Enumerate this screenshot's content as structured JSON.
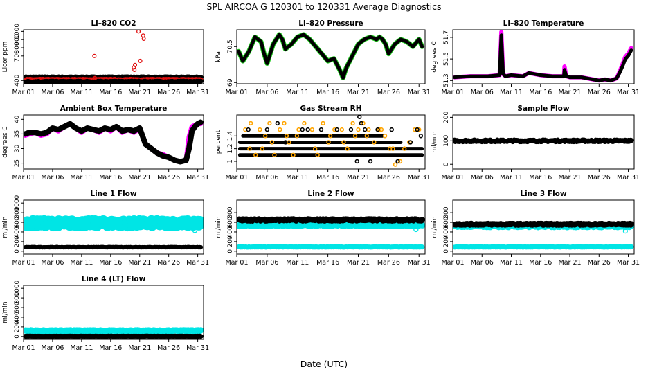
{
  "figure": {
    "title": "SPL   AIRCOA G   120301 to 120331   Average Diagnostics",
    "xlabel": "Date (UTC)"
  },
  "colors": {
    "black": "#000000",
    "red": "#e01010",
    "magenta": "#ff00ff",
    "green": "#22cc22",
    "orange": "#ffa500",
    "cyan": "#00e5e5",
    "blue": "#1f1fcf"
  },
  "x_ticks": [
    "Mar 01",
    "Mar 06",
    "Mar 11",
    "Mar 16",
    "Mar 21",
    "Mar 26",
    "Mar 31"
  ],
  "chart_data": [
    {
      "id": "co2",
      "title": "Li-820 CO2",
      "type": "scatter",
      "ylabel": "Licor ppm",
      "xlim": [
        1,
        32
      ],
      "ylim": [
        360,
        1020
      ],
      "yticks": [
        400,
        700,
        800,
        900,
        1000
      ],
      "series": [
        {
          "name": "co2_black_upper",
          "color": "black",
          "style": "band",
          "base": 440,
          "noise": 5
        },
        {
          "name": "co2_red",
          "color": "red",
          "style": "band",
          "base": 410,
          "noise": 5
        },
        {
          "name": "co2_black_lower",
          "color": "black",
          "style": "band",
          "base": 385,
          "noise": 8
        },
        {
          "name": "co2_spikes",
          "color": "red",
          "style": "points",
          "x": [
            13.2,
            13.3,
            20.0,
            20.1,
            20.2,
            20.8,
            21.1,
            21.6,
            21.7
          ],
          "y": [
            700,
            430,
            560,
            530,
            590,
            1000,
            640,
            950,
            910
          ]
        }
      ]
    },
    {
      "id": "pressure",
      "title": "Li-820 Pressure",
      "type": "line",
      "ylabel": "kPa",
      "xlim": [
        1,
        32
      ],
      "ylim": [
        68.95,
        71.2
      ],
      "yticks": [
        69.0,
        70.5
      ],
      "series": [
        {
          "name": "pressure_green",
          "color": "green",
          "style": "line",
          "width": 7,
          "x": [
            1.3,
            2,
            3,
            4,
            5,
            5.5,
            6,
            6.5,
            7,
            8,
            8.5,
            9,
            10,
            11,
            12,
            13,
            14,
            15,
            16,
            17,
            18,
            18.5,
            19,
            20,
            21,
            22,
            23,
            24,
            24.5,
            25,
            25.5,
            26,
            27,
            28,
            29,
            30,
            31,
            31.5
          ],
          "y": [
            70.3,
            69.9,
            70.3,
            70.9,
            70.7,
            70.2,
            69.8,
            70.2,
            70.6,
            71.0,
            70.8,
            70.4,
            70.6,
            70.9,
            71.0,
            70.8,
            70.5,
            70.2,
            69.9,
            70.0,
            69.5,
            69.2,
            69.6,
            70.1,
            70.6,
            70.8,
            70.9,
            70.8,
            70.9,
            70.8,
            70.6,
            70.2,
            70.6,
            70.8,
            70.7,
            70.5,
            70.8,
            70.5
          ]
        },
        {
          "name": "pressure_black",
          "color": "black",
          "style": "line",
          "width": 5,
          "x": [
            1.3,
            2,
            3,
            4,
            5,
            5.5,
            6,
            6.5,
            7,
            8,
            8.5,
            9,
            10,
            11,
            12,
            13,
            14,
            15,
            16,
            17,
            18,
            18.5,
            19,
            20,
            21,
            22,
            23,
            24,
            24.5,
            25,
            25.5,
            26,
            27,
            28,
            29,
            30,
            31,
            31.5
          ],
          "y": [
            70.3,
            69.9,
            70.3,
            70.9,
            70.7,
            70.2,
            69.8,
            70.2,
            70.6,
            71.0,
            70.8,
            70.4,
            70.6,
            70.9,
            71.0,
            70.8,
            70.5,
            70.2,
            69.9,
            70.0,
            69.5,
            69.2,
            69.6,
            70.1,
            70.6,
            70.8,
            70.9,
            70.8,
            70.9,
            70.8,
            70.6,
            70.2,
            70.6,
            70.8,
            70.7,
            70.5,
            70.8,
            70.5
          ]
        }
      ]
    },
    {
      "id": "temperature",
      "title": "Li-820 Temperature",
      "type": "scatter",
      "ylabel": "degrees C",
      "xlim": [
        1,
        32
      ],
      "ylim": [
        51.27,
        51.77
      ],
      "yticks": [
        51.3,
        51.5,
        51.7
      ],
      "series": [
        {
          "name": "temp_magenta",
          "color": "magenta",
          "style": "line",
          "width": 6,
          "x": [
            1.3,
            4,
            7,
            9,
            9.3,
            9.6,
            10,
            11,
            13,
            14,
            16,
            18,
            20,
            20.1,
            20.4,
            21,
            23,
            24,
            25,
            26,
            27,
            28,
            29,
            29.5,
            30,
            30.5,
            31,
            31.5
          ],
          "y": [
            51.33,
            51.34,
            51.34,
            51.35,
            51.75,
            51.36,
            51.34,
            51.35,
            51.34,
            51.37,
            51.35,
            51.34,
            51.34,
            51.43,
            51.34,
            51.33,
            51.33,
            51.32,
            51.31,
            51.3,
            51.31,
            51.3,
            51.32,
            51.38,
            51.45,
            51.52,
            51.55,
            51.6
          ]
        },
        {
          "name": "temp_black",
          "color": "black",
          "style": "line",
          "width": 5,
          "x": [
            1.3,
            4,
            7,
            9,
            9.3,
            9.6,
            10,
            11,
            13,
            14,
            16,
            18,
            20,
            20.1,
            20.4,
            21,
            23,
            24,
            25,
            26,
            27,
            28,
            29,
            29.5,
            30,
            30.5,
            31,
            31.5
          ],
          "y": [
            51.33,
            51.34,
            51.34,
            51.35,
            51.72,
            51.36,
            51.34,
            51.35,
            51.34,
            51.37,
            51.35,
            51.34,
            51.34,
            51.4,
            51.34,
            51.33,
            51.33,
            51.32,
            51.31,
            51.3,
            51.31,
            51.3,
            51.32,
            51.37,
            51.43,
            51.5,
            51.53,
            51.58
          ]
        }
      ]
    },
    {
      "id": "ambient",
      "title": "Ambient Box Temperature",
      "type": "line",
      "ylabel": "degrees C",
      "xlim": [
        1,
        32
      ],
      "ylim": [
        23,
        41.5
      ],
      "yticks": [
        25,
        30,
        35,
        40
      ],
      "series": [
        {
          "name": "ambient_magenta",
          "color": "magenta",
          "style": "line",
          "width": 7,
          "x": [
            1.3,
            2,
            3,
            4,
            5,
            6,
            7,
            8,
            9,
            10,
            11,
            12,
            13,
            14,
            15,
            16,
            17,
            18,
            19,
            20,
            21,
            22,
            23,
            24,
            25,
            26,
            27,
            28,
            29,
            29.5,
            30,
            30.5,
            31,
            31.5
          ],
          "y": [
            34.5,
            35,
            35.5,
            34.5,
            35,
            37,
            36,
            37.5,
            38.5,
            37,
            35.5,
            37,
            36.5,
            35.5,
            37,
            36,
            37.5,
            35.5,
            36.5,
            35.5,
            37,
            31.5,
            30,
            28.5,
            28,
            27,
            26,
            25.5,
            26,
            34,
            37.5,
            38,
            38.5,
            38.5
          ]
        },
        {
          "name": "ambient_black",
          "color": "black",
          "style": "line",
          "width": 8,
          "x": [
            1.3,
            2,
            3,
            4,
            5,
            6,
            7,
            8,
            9,
            10,
            11,
            12,
            13,
            14,
            15,
            16,
            17,
            18,
            19,
            20,
            21,
            22,
            23,
            24,
            25,
            26,
            27,
            28,
            29,
            29.5,
            30,
            30.5,
            31,
            31.5
          ],
          "y": [
            35,
            35.5,
            35.5,
            35,
            35.5,
            37,
            36.5,
            37.5,
            38.5,
            37,
            36,
            37,
            36.5,
            36,
            37,
            36.5,
            37.5,
            36,
            36.5,
            36,
            37,
            31.5,
            30,
            28.5,
            27.5,
            27,
            26,
            25.5,
            26,
            30,
            36,
            37.5,
            38.5,
            39
          ]
        }
      ]
    },
    {
      "id": "rh",
      "title": "Gas Stream RH",
      "type": "scatter",
      "ylabel": "percent",
      "xlim": [
        1,
        32
      ],
      "ylim": [
        0.88,
        1.73
      ],
      "yticks": [
        1.0,
        1.2,
        1.4
      ],
      "series": [
        {
          "name": "rh_black_bands",
          "color": "black",
          "style": "levels",
          "levels": [
            1.1,
            1.2,
            1.3,
            1.4
          ],
          "x_ranges": [
            [
              1.5,
              31.5
            ],
            [
              1.5,
              31.5
            ],
            [
              1.5,
              28
            ],
            [
              2,
              25
            ]
          ]
        },
        {
          "name": "rh_orange_scatter",
          "color": "orange",
          "style": "scatter",
          "x": [
            2.4,
            3.3,
            4.1,
            4.8,
            5.7,
            6.4,
            7.2,
            8.1,
            8.8,
            9.6,
            10.3,
            11.2,
            12.1,
            13.4,
            14.3,
            15.2,
            16.4,
            17.1,
            18.3,
            19.2,
            20.1,
            21.0,
            21.8,
            22.7,
            23.6,
            24.5,
            25.4,
            26.2,
            27.1,
            27.9,
            3.1,
            6.8,
            10.9,
            16.1,
            20.5,
            24.8,
            28.6,
            29.4,
            30.3,
            31.0,
            5.2,
            9.2,
            13.9,
            18.6,
            22.4,
            26.7
          ],
          "y": [
            1.5,
            1.6,
            1.1,
            1.5,
            1.4,
            1.6,
            1.1,
            1.5,
            1.6,
            1.3,
            1.1,
            1.5,
            1.6,
            1.5,
            1.1,
            1.6,
            1.4,
            1.5,
            1.5,
            1.2,
            1.6,
            1.5,
            1.6,
            1.5,
            1.3,
            1.5,
            1.4,
            1.2,
            0.95,
            1.0,
            1.2,
            1.3,
            1.4,
            1.3,
            1.4,
            1.5,
            1.2,
            1.3,
            1.5,
            1.5,
            1.2,
            1.4,
            1.2,
            1.3,
            1.4,
            1.2
          ]
        },
        {
          "name": "rh_black_scatter",
          "color": "black",
          "style": "scatter",
          "x": [
            2.9,
            6.0,
            7.7,
            9.0,
            11.8,
            12.7,
            14.9,
            17.5,
            19.8,
            21.2,
            21.5,
            22.1,
            23.0,
            24.2,
            26.5,
            27.5,
            29.6,
            30.7,
            31.3,
            20.8
          ],
          "y": [
            1.5,
            1.5,
            1.6,
            1.3,
            1.5,
            1.5,
            1.5,
            1.5,
            1.5,
            1.7,
            1.6,
            1.5,
            1.0,
            1.5,
            1.5,
            1.0,
            1.3,
            1.5,
            1.4,
            1.0
          ]
        }
      ]
    },
    {
      "id": "sample_flow",
      "title": "Sample Flow",
      "type": "line",
      "ylabel": "ml/min",
      "xlim": [
        1,
        32
      ],
      "ylim": [
        -20,
        210
      ],
      "yticks": [
        0,
        100,
        200
      ],
      "series": [
        {
          "name": "sample_flow_black",
          "color": "black",
          "style": "band",
          "base": 100,
          "noise": 4,
          "width": 6
        }
      ]
    },
    {
      "id": "line1",
      "title": "Line 1 Flow",
      "type": "line",
      "ylabel": "ml/min",
      "xlim": [
        1,
        32
      ],
      "ylim": [
        -60,
        1060
      ],
      "yticks": [
        0,
        200,
        400,
        600,
        800,
        1000
      ],
      "series": [
        {
          "name": "line1_cyan",
          "color": "cyan",
          "style": "band",
          "base": 580,
          "noise": 60,
          "width": 14,
          "outliers_x": [
            30.5
          ],
          "outliers_y": [
            430
          ]
        },
        {
          "name": "line1_black",
          "color": "black",
          "style": "band",
          "base": 85,
          "noise": 5,
          "width": 5
        }
      ]
    },
    {
      "id": "line2",
      "title": "Line 2 Flow",
      "type": "line",
      "ylabel": "ml/min",
      "xlim": [
        1,
        32
      ],
      "ylim": [
        -60,
        1060
      ],
      "yticks": [
        0,
        200,
        400,
        600,
        800
      ],
      "series": [
        {
          "name": "line2_cyan_upper",
          "color": "cyan",
          "style": "band",
          "base": 540,
          "noise": 20,
          "width": 8,
          "outliers_x": [
            30.5
          ],
          "outliers_y": [
            450
          ]
        },
        {
          "name": "line2_black",
          "color": "black",
          "style": "band",
          "base": 650,
          "noise": 20,
          "width": 7
        },
        {
          "name": "line2_cyan_lower",
          "color": "cyan",
          "style": "band",
          "base": 90,
          "noise": 5,
          "width": 6
        }
      ]
    },
    {
      "id": "line3",
      "title": "Line 3 Flow",
      "type": "line",
      "ylabel": "ml/min",
      "xlim": [
        1,
        32
      ],
      "ylim": [
        -60,
        1060
      ],
      "yticks": [
        0,
        200,
        400,
        600,
        800
      ],
      "series": [
        {
          "name": "line3_cyan_upper",
          "color": "cyan",
          "style": "band",
          "base": 520,
          "noise": 20,
          "width": 8,
          "outliers_x": [
            30.5
          ],
          "outliers_y": [
            420
          ]
        },
        {
          "name": "line3_black",
          "color": "black",
          "style": "band",
          "base": 560,
          "noise": 15,
          "width": 7
        },
        {
          "name": "line3_cyan_lower",
          "color": "cyan",
          "style": "band",
          "base": 90,
          "noise": 5,
          "width": 6
        }
      ]
    },
    {
      "id": "line4",
      "title": "Line 4 (LT) Flow",
      "type": "line",
      "ylabel": "ml/min",
      "xlim": [
        1,
        32
      ],
      "ylim": [
        -60,
        1060
      ],
      "yticks": [
        0,
        200,
        400,
        600,
        800,
        1000
      ],
      "series": [
        {
          "name": "line4_cyan",
          "color": "cyan",
          "style": "band",
          "base": 120,
          "noise": 10,
          "width": 8
        },
        {
          "name": "line4_black",
          "color": "black",
          "style": "band",
          "base": 5,
          "noise": 3,
          "width": 6
        }
      ]
    }
  ]
}
